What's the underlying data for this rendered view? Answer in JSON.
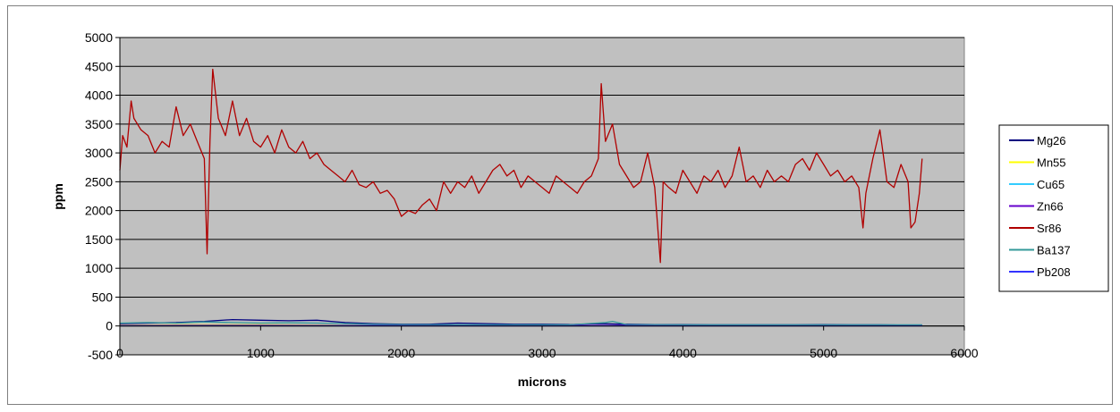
{
  "chart_data": {
    "type": "line",
    "title": "",
    "xlabel": "microns",
    "ylabel": "ppm",
    "xlim": [
      0,
      6000
    ],
    "ylim": [
      -500,
      5000
    ],
    "xticks": [
      0,
      1000,
      2000,
      3000,
      4000,
      5000,
      6000
    ],
    "yticks": [
      -500,
      0,
      500,
      1000,
      1500,
      2000,
      2500,
      3000,
      3500,
      4000,
      4500,
      5000
    ],
    "xtick_labels": [
      "0",
      "1000",
      "2000",
      "3000",
      "4000",
      "5000",
      "6000"
    ],
    "ytick_labels": [
      "-500",
      "0",
      "500",
      "1000",
      "1500",
      "2000",
      "2500",
      "3000",
      "3500",
      "4000",
      "4500",
      "5000"
    ],
    "grid": true,
    "legend_position": "right",
    "plot_background": "#c0c0c0",
    "series": [
      {
        "name": "Mg26",
        "color": "#000080",
        "x": [
          0,
          200,
          400,
          600,
          800,
          1000,
          1200,
          1400,
          1600,
          1800,
          2000,
          2200,
          2400,
          2600,
          2800,
          3000,
          3200,
          3400,
          3600,
          3800,
          4000,
          4200,
          4400,
          4600,
          4800,
          5000,
          5200,
          5400,
          5600,
          5700
        ],
        "y": [
          40,
          50,
          60,
          80,
          110,
          100,
          90,
          100,
          60,
          40,
          30,
          30,
          50,
          40,
          30,
          30,
          25,
          40,
          30,
          25,
          25,
          20,
          20,
          20,
          20,
          25,
          20,
          20,
          15,
          15
        ]
      },
      {
        "name": "Mn55",
        "color": "#ffff00",
        "x": [
          0,
          500,
          1000,
          1500,
          2000,
          2500,
          3000,
          3500,
          4000,
          4500,
          5000,
          5500,
          5700
        ],
        "y": [
          15,
          20,
          20,
          15,
          10,
          10,
          10,
          10,
          8,
          8,
          8,
          8,
          8
        ]
      },
      {
        "name": "Cu65",
        "color": "#33ccff",
        "x": [
          0,
          500,
          1000,
          1500,
          2000,
          2500,
          3000,
          3500,
          4000,
          4500,
          5000,
          5500,
          5700
        ],
        "y": [
          5,
          5,
          5,
          5,
          5,
          5,
          5,
          5,
          5,
          5,
          5,
          5,
          5
        ]
      },
      {
        "name": "Zn66",
        "color": "#6600cc",
        "x": [
          0,
          500,
          1000,
          1500,
          2000,
          2500,
          3000,
          3500,
          4000,
          4500,
          5000,
          5500,
          5700
        ],
        "y": [
          10,
          12,
          12,
          10,
          8,
          8,
          8,
          8,
          8,
          8,
          8,
          8,
          8
        ]
      },
      {
        "name": "Sr86",
        "color": "#b00000",
        "x": [
          0,
          20,
          50,
          80,
          100,
          150,
          200,
          250,
          300,
          350,
          400,
          450,
          500,
          550,
          600,
          620,
          640,
          660,
          700,
          750,
          800,
          850,
          900,
          950,
          1000,
          1050,
          1100,
          1150,
          1200,
          1250,
          1300,
          1350,
          1400,
          1450,
          1500,
          1550,
          1600,
          1650,
          1700,
          1750,
          1800,
          1850,
          1900,
          1950,
          2000,
          2050,
          2100,
          2150,
          2200,
          2250,
          2300,
          2350,
          2400,
          2450,
          2500,
          2550,
          2600,
          2650,
          2700,
          2750,
          2800,
          2850,
          2900,
          2950,
          3000,
          3050,
          3100,
          3150,
          3200,
          3250,
          3300,
          3350,
          3400,
          3420,
          3450,
          3500,
          3550,
          3600,
          3650,
          3700,
          3750,
          3800,
          3840,
          3860,
          3900,
          3950,
          4000,
          4050,
          4100,
          4150,
          4200,
          4250,
          4300,
          4350,
          4400,
          4450,
          4500,
          4550,
          4600,
          4650,
          4700,
          4750,
          4800,
          4850,
          4900,
          4950,
          5000,
          5050,
          5100,
          5150,
          5200,
          5250,
          5280,
          5300,
          5350,
          5400,
          5450,
          5500,
          5550,
          5600,
          5620,
          5650,
          5680,
          5700
        ],
        "y": [
          2700,
          3300,
          3100,
          3900,
          3600,
          3400,
          3300,
          3000,
          3200,
          3100,
          3800,
          3300,
          3500,
          3200,
          2900,
          1250,
          3200,
          4450,
          3600,
          3300,
          3900,
          3300,
          3600,
          3200,
          3100,
          3300,
          3000,
          3400,
          3100,
          3000,
          3200,
          2900,
          3000,
          2800,
          2700,
          2600,
          2500,
          2700,
          2450,
          2400,
          2500,
          2300,
          2350,
          2200,
          1900,
          2000,
          1950,
          2100,
          2200,
          2000,
          2500,
          2300,
          2500,
          2400,
          2600,
          2300,
          2500,
          2700,
          2800,
          2600,
          2700,
          2400,
          2600,
          2500,
          2400,
          2300,
          2600,
          2500,
          2400,
          2300,
          2500,
          2600,
          2900,
          4200,
          3200,
          3500,
          2800,
          2600,
          2400,
          2500,
          3000,
          2400,
          1100,
          2500,
          2400,
          2300,
          2700,
          2500,
          2300,
          2600,
          2500,
          2700,
          2400,
          2600,
          3100,
          2500,
          2600,
          2400,
          2700,
          2500,
          2600,
          2500,
          2800,
          2900,
          2700,
          3000,
          2800,
          2600,
          2700,
          2500,
          2600,
          2400,
          1700,
          2300,
          2900,
          3400,
          2500,
          2400,
          2800,
          2500,
          1700,
          1800,
          2300,
          2900
        ]
      },
      {
        "name": "Ba137",
        "color": "#339999",
        "x": [
          0,
          200,
          400,
          600,
          800,
          1000,
          1200,
          1400,
          1600,
          1800,
          2000,
          2400,
          2800,
          3200,
          3450,
          3500,
          3600,
          4000,
          4400,
          4800,
          5200,
          5600,
          5700
        ],
        "y": [
          50,
          60,
          50,
          70,
          60,
          50,
          55,
          50,
          40,
          30,
          25,
          20,
          20,
          20,
          60,
          80,
          25,
          20,
          20,
          20,
          20,
          20,
          20
        ]
      },
      {
        "name": "Pb208",
        "color": "#3333ff",
        "x": [
          0,
          500,
          1000,
          1500,
          2000,
          2500,
          3000,
          3500,
          4000,
          4500,
          5000,
          5500,
          5700
        ],
        "y": [
          5,
          5,
          5,
          5,
          4,
          4,
          4,
          4,
          4,
          4,
          4,
          4,
          4
        ]
      }
    ]
  }
}
